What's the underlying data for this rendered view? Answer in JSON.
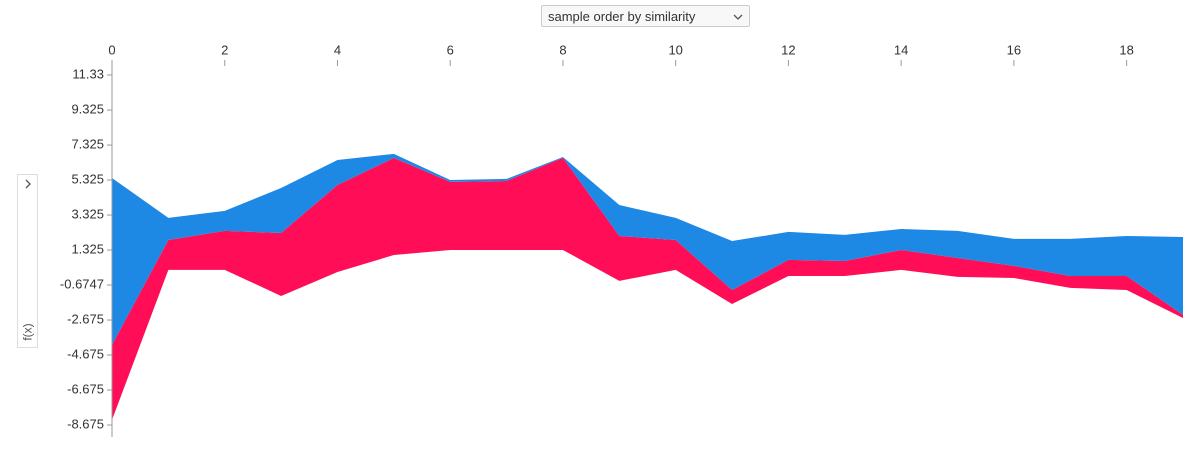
{
  "chart_data": {
    "type": "band",
    "sort_label": "sample order by similarity",
    "ylabel": "f(x)",
    "x": [
      0,
      1,
      2,
      3,
      4,
      5,
      6,
      7,
      8,
      9,
      10,
      11,
      12,
      13,
      14,
      15,
      16,
      17,
      18,
      19
    ],
    "xlim": [
      0,
      19
    ],
    "xticks": [
      0,
      2,
      4,
      6,
      8,
      10,
      12,
      14,
      16,
      18
    ],
    "ylim": [
      -9.36,
      11.9
    ],
    "yticks": [
      11.33,
      9.325,
      7.325,
      5.325,
      3.325,
      1.325,
      -0.6747,
      -2.675,
      -4.675,
      -6.675,
      -8.675
    ],
    "series": [
      {
        "color": "#ff0d57",
        "low": [
          -8.38,
          0.19,
          0.19,
          -1.3,
          0.07,
          1.04,
          1.33,
          1.33,
          1.33,
          -0.44,
          0.19,
          -1.76,
          -0.16,
          -0.16,
          0.19,
          -0.21,
          -0.27,
          -0.84,
          -0.96,
          -2.56
        ],
        "values": [
          -4.1,
          1.9,
          2.42,
          2.3,
          5.04,
          6.59,
          5.22,
          5.27,
          6.59,
          2.13,
          1.9,
          -0.96,
          0.76,
          0.7,
          1.33,
          0.87,
          0.42,
          -0.16,
          -0.16,
          -2.38
        ]
      },
      {
        "color": "#1e88e5",
        "low": [
          -4.1,
          1.9,
          2.42,
          2.3,
          5.04,
          6.59,
          5.22,
          5.27,
          6.59,
          2.13,
          1.9,
          -0.96,
          0.76,
          0.7,
          1.33,
          0.87,
          0.42,
          -0.16,
          -0.16,
          -2.38
        ],
        "values": [
          5.44,
          3.16,
          3.56,
          4.87,
          6.47,
          6.82,
          5.33,
          5.39,
          6.64,
          3.9,
          3.16,
          1.84,
          2.36,
          2.19,
          2.53,
          2.42,
          1.96,
          1.96,
          2.13,
          2.07
        ]
      }
    ]
  }
}
